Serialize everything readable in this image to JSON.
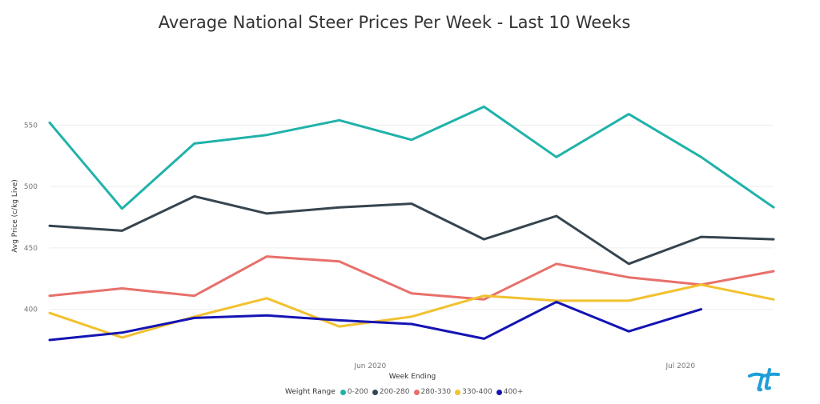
{
  "colors": {
    "0-200": "#20b2aa",
    "200-280": "#36454f",
    "280-330": "#e8706a",
    "330-400": "#f2c12e",
    "400+": "#1414b4",
    "gridline": "#eeeeee",
    "logo": "#1f9fd8"
  },
  "legend": {
    "title": "Weight Range"
  },
  "logo": {
    "icon": "tt-logo-icon"
  },
  "chart_data": {
    "type": "line",
    "title": "Average National Steer Prices Per Week - Last 10 Weeks",
    "xlabel": "Week Ending",
    "ylabel": "Avg Price (c/kg Live)",
    "x": [
      "2020-05-01",
      "2020-05-08",
      "2020-05-15",
      "2020-05-22",
      "2020-05-29",
      "2020-06-05",
      "2020-06-12",
      "2020-06-19",
      "2020-06-26",
      "2020-07-03",
      "2020-07-10"
    ],
    "x_ticks": [
      {
        "date": "2020-06-01",
        "label": "Jun 2020"
      },
      {
        "date": "2020-07-01",
        "label": "Jul 2020"
      }
    ],
    "ylim": [
      360,
      590
    ],
    "y_ticks": [
      400,
      450,
      500,
      550
    ],
    "grid": true,
    "legend_position": "bottom",
    "series": [
      {
        "name": "0-200",
        "values": [
          552,
          482,
          535,
          542,
          554,
          538,
          565,
          524,
          559,
          524,
          483
        ]
      },
      {
        "name": "200-280",
        "values": [
          468,
          464,
          492,
          478,
          483,
          486,
          457,
          476,
          437,
          459,
          457
        ]
      },
      {
        "name": "280-330",
        "values": [
          411,
          417,
          411,
          443,
          439,
          413,
          408,
          437,
          426,
          420,
          431
        ]
      },
      {
        "name": "330-400",
        "values": [
          397,
          377,
          394,
          409,
          386,
          394,
          411,
          407,
          407,
          420,
          408
        ]
      },
      {
        "name": "400+",
        "values": [
          375,
          381,
          393,
          395,
          391,
          388,
          376,
          406,
          382,
          400,
          null
        ]
      }
    ]
  }
}
